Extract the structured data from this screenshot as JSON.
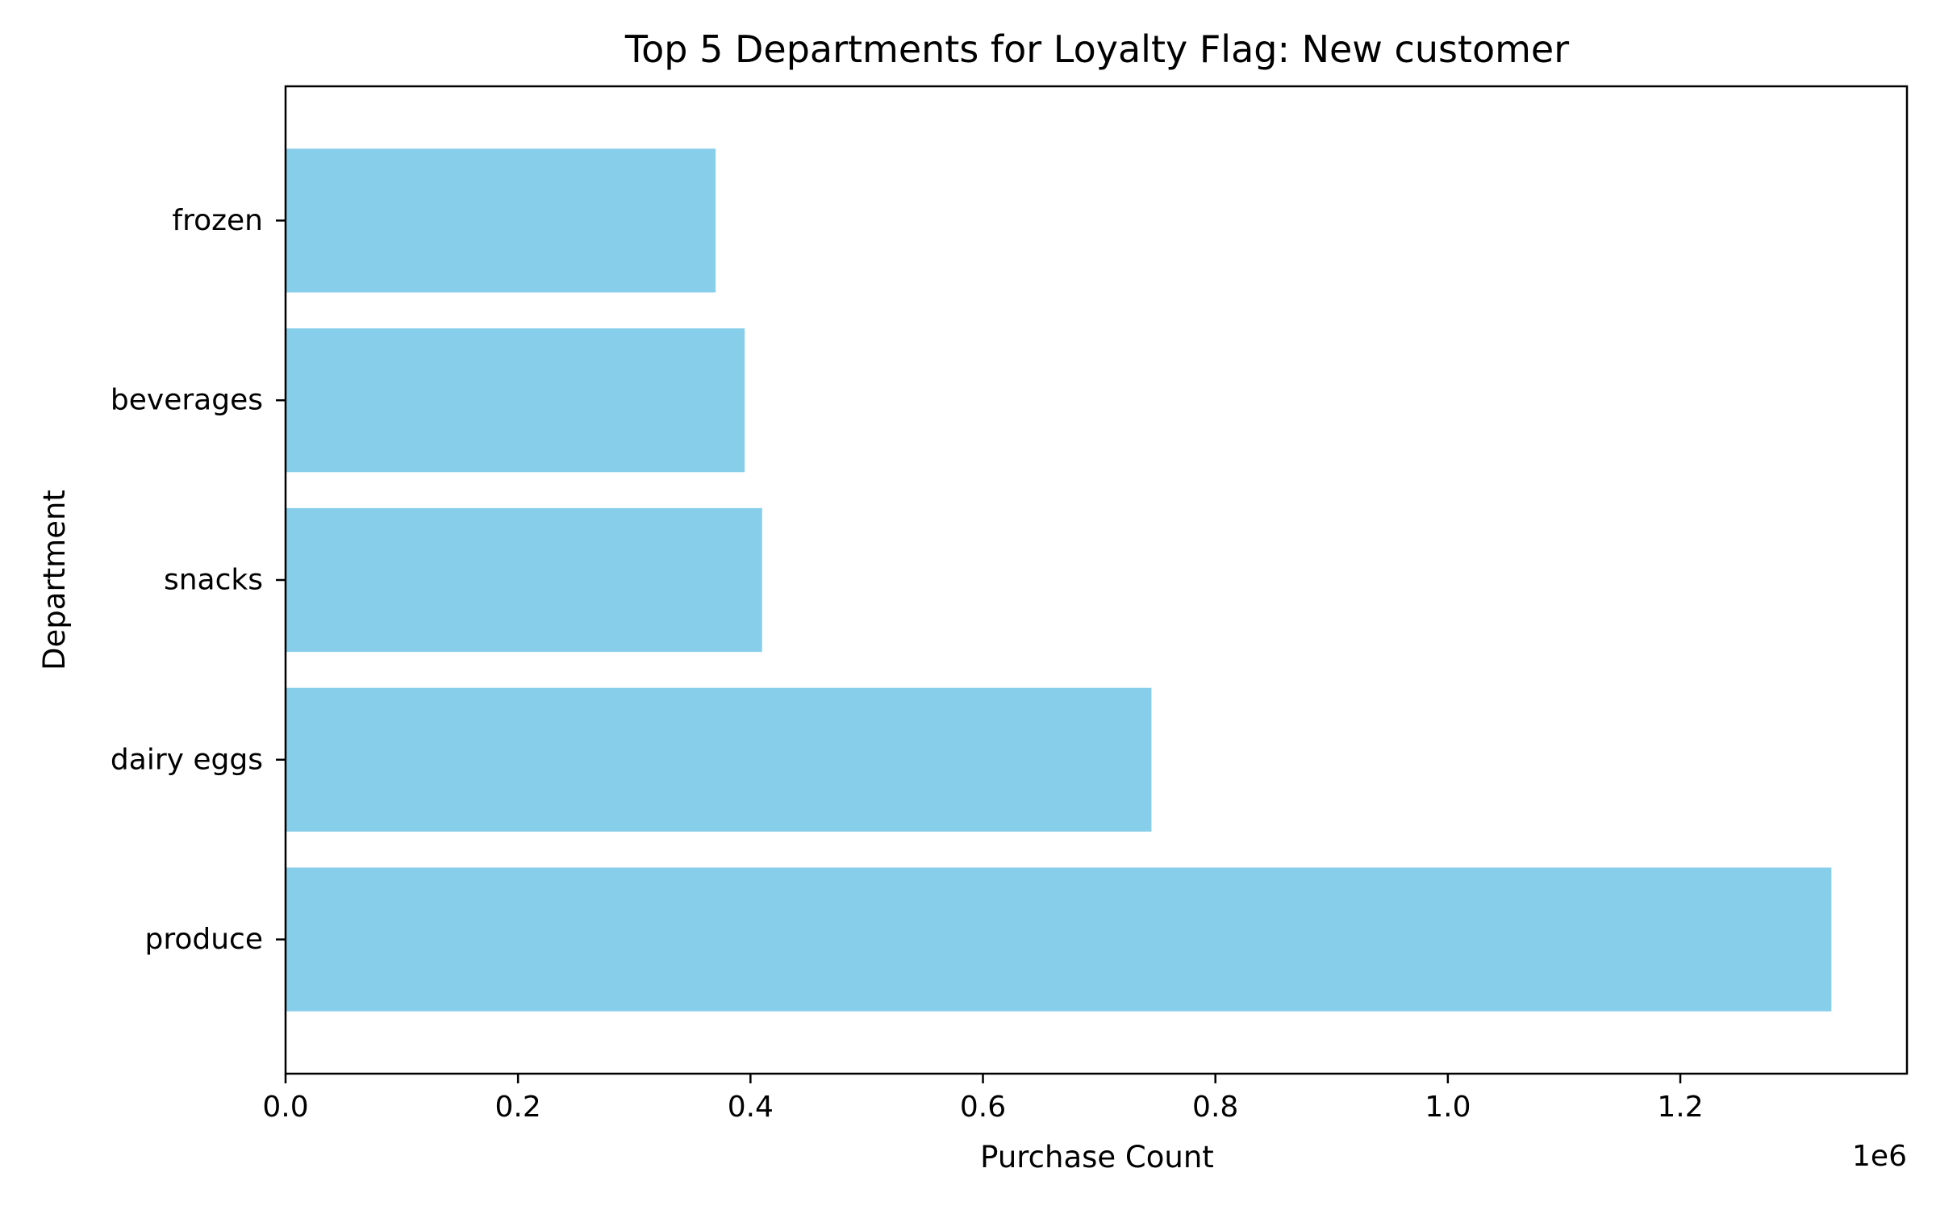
{
  "chart_data": {
    "type": "bar",
    "orientation": "horizontal",
    "title": "Top 5 Departments for Loyalty Flag: New customer",
    "xlabel": "Purchase Count",
    "ylabel": "Department",
    "x_offset_label": "1e6",
    "categories": [
      "produce",
      "dairy eggs",
      "snacks",
      "beverages",
      "frozen"
    ],
    "values": [
      1330000,
      745000,
      410000,
      395000,
      370000
    ],
    "xlim": [
      0,
      1395000
    ],
    "x_ticks": [
      0,
      200000,
      400000,
      600000,
      800000,
      1000000,
      1200000
    ],
    "x_tick_labels": [
      "0.0",
      "0.2",
      "0.4",
      "0.6",
      "0.8",
      "1.0",
      "1.2"
    ],
    "bar_color": "#87ceeb",
    "grid": false,
    "legend": "none"
  }
}
